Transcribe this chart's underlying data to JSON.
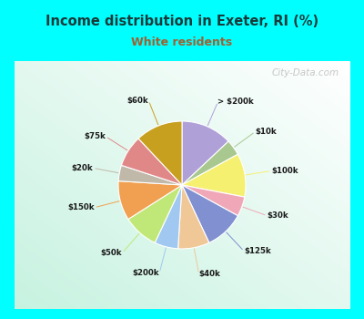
{
  "title": "Income distribution in Exeter, RI (%)",
  "subtitle": "White residents",
  "title_color": "#1a3a3a",
  "subtitle_color": "#a06030",
  "bg_cyan": "#00ffff",
  "bg_chart_color": "#d8eed8",
  "watermark": "City-Data.com",
  "labels": [
    "> $200k",
    "$10k",
    "$100k",
    "$30k",
    "$125k",
    "$40k",
    "$200k",
    "$50k",
    "$150k",
    "$20k",
    "$75k",
    "$60k"
  ],
  "values": [
    13,
    4,
    11,
    5,
    10,
    8,
    6,
    9,
    10,
    4,
    8,
    12
  ],
  "colors": [
    "#b0a0d8",
    "#a8c890",
    "#f5f070",
    "#f0a8b8",
    "#8090d0",
    "#f0c898",
    "#a0c8f0",
    "#c0e878",
    "#f0a050",
    "#c0b8a8",
    "#e08888",
    "#c8a020"
  ],
  "line_colors": [
    "#b0a0d8",
    "#a8c890",
    "#f5f070",
    "#f0a8b8",
    "#8090d0",
    "#f0c898",
    "#a0c8f0",
    "#c0e878",
    "#f0a050",
    "#c0b8a8",
    "#e08888",
    "#c8a020"
  ],
  "startangle": 90,
  "figsize": [
    4.0,
    3.5
  ],
  "dpi": 100
}
